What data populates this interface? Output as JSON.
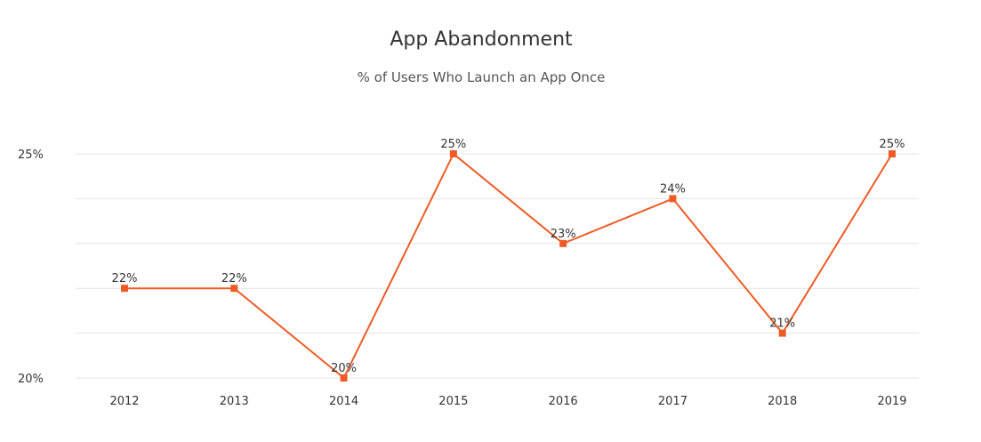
{
  "chart_data": {
    "type": "line",
    "title": "App Abandonment",
    "subtitle": "% of Users Who Launch an App Once",
    "xlabel": "",
    "ylabel": "",
    "categories": [
      "2012",
      "2013",
      "2014",
      "2015",
      "2016",
      "2017",
      "2018",
      "2019"
    ],
    "series": [
      {
        "values": [
          22,
          22,
          20,
          25,
          23,
          24,
          21,
          25
        ],
        "data_labels": [
          "22%",
          "22%",
          "20%",
          "25%",
          "23%",
          "24%",
          "21%",
          "25%"
        ],
        "color": "#ef5b25"
      }
    ],
    "ylim": [
      20,
      25
    ],
    "ygrid": [
      20,
      21,
      22,
      23,
      24,
      25
    ],
    "yticks": [
      {
        "value": 20,
        "label": "20%"
      },
      {
        "value": 25,
        "label": "25%"
      }
    ],
    "grid": "horizontal",
    "legend": "none"
  }
}
